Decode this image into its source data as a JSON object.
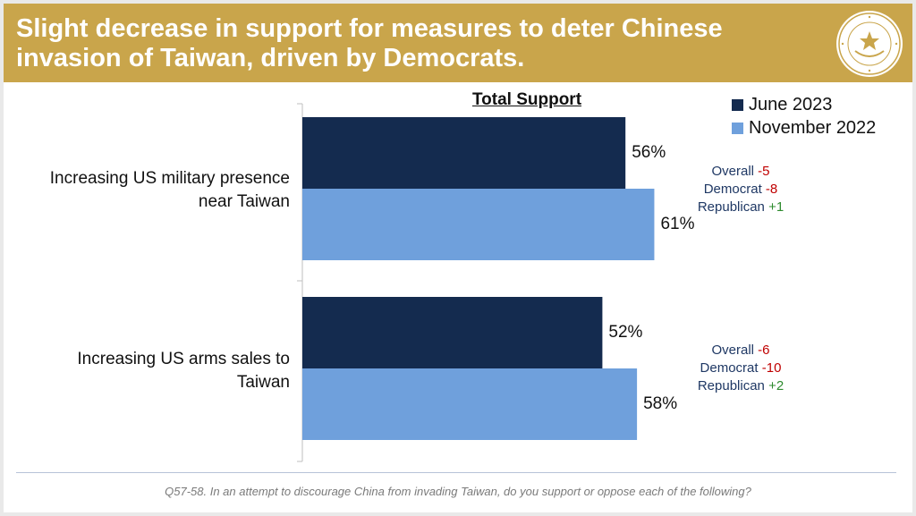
{
  "header": {
    "title_line1": "Slight decrease in support for measures to deter Chinese",
    "title_line2": "invasion of Taiwan, driven by Democrats."
  },
  "logo": {
    "name": "ronald-reagan-foundation-seal"
  },
  "chart_data": {
    "type": "bar",
    "orientation": "horizontal",
    "title": "Total Support",
    "categories": [
      "Increasing US military presence near Taiwan",
      "Increasing US arms sales to Taiwan"
    ],
    "category_lines": [
      [
        "Increasing US military presence",
        "near Taiwan"
      ],
      [
        "Increasing US arms sales to",
        "Taiwan"
      ]
    ],
    "series": [
      {
        "name": "June 2023",
        "values": [
          56,
          52
        ],
        "labels": [
          "56%",
          "52%"
        ],
        "color": "#142b4f"
      },
      {
        "name": "November 2022",
        "values": [
          61,
          58
        ],
        "labels": [
          "61%",
          "58%"
        ],
        "color": "#6fa0dc"
      }
    ],
    "xlim": [
      0,
      100
    ],
    "legend_position": "top-right",
    "grid": false,
    "annotations": [
      {
        "rows": [
          {
            "label": "Overall",
            "change": "-5"
          },
          {
            "label": "Democrat",
            "change": "-8"
          },
          {
            "label": "Republican",
            "change": "+1"
          }
        ]
      },
      {
        "rows": [
          {
            "label": "Overall",
            "change": "-6"
          },
          {
            "label": "Democrat",
            "change": "-10"
          },
          {
            "label": "Republican",
            "change": "+2"
          }
        ]
      }
    ]
  },
  "footer": {
    "note": "Q57-58. In an attempt to discourage China from invading Taiwan, do you support or oppose each of the following?"
  }
}
